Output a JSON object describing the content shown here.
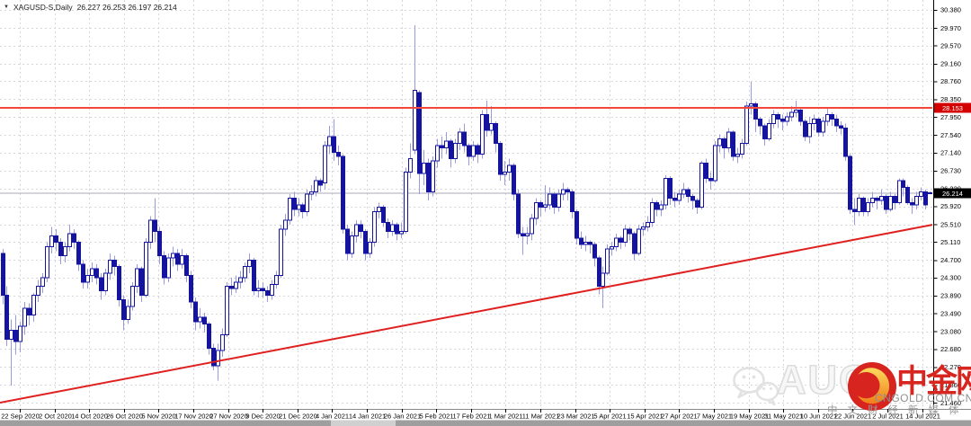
{
  "header": {
    "dropdown_icon": "▼",
    "symbol_label": "XAGUSD-S,Daily",
    "ohlc": "26.227 26.253 26.197 26.214"
  },
  "watermark": {
    "aug_text": "AUG",
    "site_name": "中金网",
    "site_url": "CNGOLD.COM.CN",
    "tagline": "中文财经新媒体"
  },
  "chart_data": {
    "type": "candlestick",
    "title": "XAGUSD-S,Daily",
    "symbol": "XAGUSD-S",
    "timeframe": "Daily",
    "ohlc_display": {
      "open": "26.227",
      "high": "26.253",
      "low": "26.197",
      "close": "26.214"
    },
    "ylim": [
      21.24,
      30.6
    ],
    "grid": true,
    "y_ticks": [
      "30.380",
      "29.970",
      "29.570",
      "29.160",
      "28.760",
      "28.350",
      "27.950",
      "27.540",
      "27.140",
      "26.730",
      "26.320",
      "25.920",
      "25.510",
      "25.110",
      "24.700",
      "24.300",
      "23.890",
      "23.490",
      "23.080",
      "22.680",
      "22.270",
      "21.860",
      "21.460"
    ],
    "x_labels": [
      "22 Sep 2020",
      "2 Oct 2020",
      "14 Oct 2020",
      "26 Oct 2020",
      "5 Nov 2020",
      "17 Nov 2020",
      "27 Nov 2020",
      "9 Dec 2020",
      "21 Dec 2020",
      "4 Jan 2021",
      "14 Jan 2021",
      "26 Jan 2021",
      "5 Feb 2021",
      "17 Feb 2021",
      "1 Mar 2021",
      "11 Mar 2021",
      "23 Mar 2021",
      "5 Apr 2021",
      "15 Apr 2021",
      "27 Apr 2021",
      "7 May 2021",
      "19 May 2021",
      "31 May 2021",
      "10 Jun 2021",
      "22 Jun 2021",
      "2 Jul 2021",
      "14 Jul 2021"
    ],
    "overlays": {
      "resistance_line": {
        "price": 28.153,
        "label": "28.153",
        "color": "#f4473a",
        "badge_color": "#d40000"
      },
      "current_price_line": {
        "price": 26.214,
        "label": "26.214",
        "color": "#a8a8b6",
        "badge_color": "#000000"
      },
      "trendline": {
        "from_price": 21.46,
        "to_price": 25.5,
        "color": "#e02020"
      }
    },
    "colors": {
      "bull": "#ffffff",
      "bear": "#1414a0",
      "border": "#1414a0",
      "wick": "#9a9ade",
      "grid": "#d6d6de",
      "axis_text": "#000000",
      "frame": "#000000",
      "scrollbar_dark": "#9e9e9e",
      "scrollbar_light": "#d0d0d0"
    },
    "candles": [
      [
        24.85,
        24.95,
        23.7,
        23.9
      ],
      [
        23.9,
        24.1,
        22.75,
        22.9
      ],
      [
        22.9,
        23.35,
        21.85,
        23.1
      ],
      [
        23.1,
        23.45,
        22.55,
        22.85
      ],
      [
        22.85,
        23.3,
        22.6,
        23.2
      ],
      [
        23.2,
        23.75,
        23.0,
        23.6
      ],
      [
        23.6,
        23.72,
        23.22,
        23.45
      ],
      [
        23.45,
        23.95,
        23.3,
        23.9
      ],
      [
        23.9,
        24.25,
        23.75,
        24.1
      ],
      [
        24.1,
        24.4,
        23.95,
        24.3
      ],
      [
        24.3,
        25.1,
        24.2,
        25.0
      ],
      [
        25.0,
        25.45,
        24.85,
        25.25
      ],
      [
        25.25,
        25.4,
        24.9,
        25.1
      ],
      [
        25.1,
        25.2,
        24.6,
        24.8
      ],
      [
        24.8,
        25.1,
        24.65,
        25.0
      ],
      [
        25.0,
        25.5,
        24.9,
        25.3
      ],
      [
        25.3,
        25.4,
        24.95,
        25.1
      ],
      [
        25.1,
        25.15,
        24.45,
        24.6
      ],
      [
        24.6,
        24.7,
        24.05,
        24.2
      ],
      [
        24.2,
        24.5,
        24.05,
        24.35
      ],
      [
        24.35,
        24.65,
        24.2,
        24.5
      ],
      [
        24.5,
        24.6,
        24.15,
        24.3
      ],
      [
        24.3,
        24.4,
        23.8,
        24.0
      ],
      [
        24.0,
        24.5,
        23.9,
        24.4
      ],
      [
        24.4,
        24.85,
        24.25,
        24.7
      ],
      [
        24.7,
        24.8,
        24.35,
        24.55
      ],
      [
        24.55,
        24.6,
        23.65,
        23.8
      ],
      [
        23.8,
        23.9,
        23.1,
        23.35
      ],
      [
        23.35,
        23.8,
        23.25,
        23.65
      ],
      [
        23.65,
        24.2,
        23.55,
        24.1
      ],
      [
        24.1,
        24.6,
        23.95,
        24.5
      ],
      [
        24.5,
        24.55,
        23.75,
        23.9
      ],
      [
        23.9,
        25.2,
        23.85,
        25.1
      ],
      [
        25.1,
        25.7,
        24.95,
        25.6
      ],
      [
        25.6,
        26.1,
        25.1,
        25.35
      ],
      [
        25.35,
        25.45,
        24.6,
        24.8
      ],
      [
        24.8,
        24.9,
        24.15,
        24.3
      ],
      [
        24.3,
        24.85,
        24.2,
        24.75
      ],
      [
        24.75,
        25.0,
        24.55,
        24.85
      ],
      [
        24.85,
        24.95,
        24.45,
        24.6
      ],
      [
        24.6,
        24.95,
        24.5,
        24.8
      ],
      [
        24.8,
        24.85,
        24.2,
        24.35
      ],
      [
        24.35,
        24.45,
        23.6,
        23.75
      ],
      [
        23.75,
        23.85,
        23.1,
        23.3
      ],
      [
        23.3,
        23.6,
        23.15,
        23.4
      ],
      [
        23.4,
        23.5,
        23.05,
        23.25
      ],
      [
        23.25,
        23.3,
        22.55,
        22.7
      ],
      [
        22.7,
        22.8,
        22.2,
        22.3
      ],
      [
        22.3,
        22.8,
        21.96,
        22.65
      ],
      [
        22.65,
        23.15,
        22.5,
        23.0
      ],
      [
        23.0,
        24.2,
        22.95,
        24.1
      ],
      [
        24.1,
        24.3,
        23.9,
        24.05
      ],
      [
        24.05,
        24.35,
        23.95,
        24.2
      ],
      [
        24.2,
        24.45,
        24.05,
        24.3
      ],
      [
        24.3,
        24.65,
        24.2,
        24.55
      ],
      [
        24.55,
        24.85,
        24.4,
        24.7
      ],
      [
        24.7,
        24.75,
        23.9,
        24.0
      ],
      [
        24.0,
        24.25,
        23.85,
        24.05
      ],
      [
        24.05,
        24.2,
        23.85,
        24.0
      ],
      [
        24.0,
        24.1,
        23.75,
        23.9
      ],
      [
        23.9,
        24.25,
        23.8,
        24.15
      ],
      [
        24.15,
        24.45,
        24.05,
        24.35
      ],
      [
        24.35,
        25.5,
        24.3,
        25.4
      ],
      [
        25.4,
        25.75,
        25.25,
        25.6
      ],
      [
        25.6,
        26.2,
        25.5,
        26.1
      ],
      [
        26.1,
        26.25,
        25.7,
        25.85
      ],
      [
        25.85,
        26.1,
        25.7,
        25.95
      ],
      [
        25.95,
        26.0,
        25.65,
        25.8
      ],
      [
        25.8,
        26.3,
        25.7,
        26.2
      ],
      [
        26.2,
        26.4,
        26.05,
        26.25
      ],
      [
        26.25,
        26.6,
        26.15,
        26.5
      ],
      [
        26.5,
        26.55,
        26.25,
        26.4
      ],
      [
        26.45,
        27.4,
        26.3,
        27.3
      ],
      [
        27.3,
        27.75,
        27.1,
        27.5
      ],
      [
        27.5,
        27.9,
        26.95,
        27.15
      ],
      [
        27.15,
        27.3,
        26.85,
        27.05
      ],
      [
        27.05,
        27.1,
        25.3,
        25.4
      ],
      [
        25.4,
        25.5,
        24.7,
        24.85
      ],
      [
        24.85,
        25.35,
        24.75,
        25.25
      ],
      [
        25.25,
        25.6,
        25.1,
        25.5
      ],
      [
        25.5,
        25.6,
        25.2,
        25.35
      ],
      [
        25.35,
        25.4,
        24.7,
        24.85
      ],
      [
        24.85,
        25.2,
        24.75,
        25.1
      ],
      [
        25.1,
        25.9,
        25.0,
        25.8
      ],
      [
        25.8,
        26.0,
        25.65,
        25.9
      ],
      [
        25.9,
        25.95,
        25.45,
        25.55
      ],
      [
        25.55,
        25.65,
        25.2,
        25.35
      ],
      [
        25.35,
        25.6,
        25.25,
        25.5
      ],
      [
        25.5,
        25.55,
        25.15,
        25.3
      ],
      [
        25.3,
        25.55,
        25.2,
        25.35
      ],
      [
        25.35,
        26.8,
        25.3,
        26.7
      ],
      [
        26.7,
        27.35,
        26.55,
        27.0
      ],
      [
        27.2,
        30.03,
        27.1,
        28.55
      ],
      [
        28.5,
        28.55,
        26.2,
        26.67
      ],
      [
        26.67,
        27.2,
        26.4,
        26.9
      ],
      [
        26.9,
        27.0,
        26.05,
        26.25
      ],
      [
        26.25,
        27.05,
        26.15,
        26.95
      ],
      [
        26.95,
        27.45,
        26.8,
        27.3
      ],
      [
        27.3,
        27.5,
        27.0,
        27.25
      ],
      [
        27.25,
        27.6,
        27.1,
        27.4
      ],
      [
        27.4,
        27.45,
        26.8,
        27.0
      ],
      [
        27.0,
        27.45,
        26.9,
        27.35
      ],
      [
        27.35,
        27.7,
        27.2,
        27.6
      ],
      [
        27.6,
        27.8,
        27.15,
        27.3
      ],
      [
        27.3,
        27.35,
        26.85,
        27.05
      ],
      [
        27.05,
        27.4,
        26.95,
        27.3
      ],
      [
        27.3,
        27.35,
        26.9,
        27.1
      ],
      [
        27.1,
        28.1,
        27.0,
        28.0
      ],
      [
        28.0,
        28.32,
        27.5,
        27.65
      ],
      [
        27.65,
        28.2,
        27.55,
        27.8
      ],
      [
        27.8,
        27.85,
        27.15,
        27.35
      ],
      [
        27.35,
        27.4,
        26.5,
        26.65
      ],
      [
        26.65,
        26.95,
        26.4,
        26.7
      ],
      [
        26.7,
        27.0,
        26.5,
        26.85
      ],
      [
        26.85,
        26.9,
        26.05,
        26.2
      ],
      [
        26.2,
        26.3,
        25.2,
        25.3
      ],
      [
        25.3,
        25.45,
        24.82,
        25.25
      ],
      [
        25.25,
        25.45,
        25.05,
        25.3
      ],
      [
        25.3,
        25.75,
        25.15,
        25.65
      ],
      [
        25.65,
        26.1,
        25.5,
        26.0
      ],
      [
        26.0,
        26.05,
        25.7,
        25.9
      ],
      [
        25.9,
        26.4,
        25.8,
        25.95
      ],
      [
        25.95,
        26.35,
        25.85,
        26.2
      ],
      [
        26.2,
        26.25,
        25.75,
        25.9
      ],
      [
        25.9,
        26.3,
        25.8,
        26.2
      ],
      [
        26.2,
        26.45,
        26.05,
        26.3
      ],
      [
        26.3,
        26.35,
        26.05,
        26.25
      ],
      [
        26.25,
        26.3,
        25.65,
        25.8
      ],
      [
        25.8,
        25.85,
        25.05,
        25.2
      ],
      [
        25.2,
        25.35,
        24.95,
        25.05
      ],
      [
        25.05,
        25.25,
        24.9,
        25.1
      ],
      [
        25.1,
        25.15,
        24.85,
        25.05
      ],
      [
        25.05,
        25.1,
        24.55,
        24.75
      ],
      [
        24.75,
        24.8,
        23.92,
        24.1
      ],
      [
        24.1,
        24.55,
        23.6,
        24.4
      ],
      [
        24.4,
        25.05,
        24.35,
        24.95
      ],
      [
        24.95,
        25.1,
        24.8,
        25.0
      ],
      [
        25.0,
        25.3,
        24.9,
        25.2
      ],
      [
        25.2,
        25.25,
        24.95,
        25.1
      ],
      [
        25.1,
        25.5,
        25.0,
        25.4
      ],
      [
        25.4,
        25.45,
        25.15,
        25.3
      ],
      [
        25.3,
        25.35,
        24.7,
        24.85
      ],
      [
        24.85,
        25.5,
        24.8,
        25.4
      ],
      [
        25.4,
        25.55,
        25.25,
        25.45
      ],
      [
        25.45,
        25.7,
        25.35,
        25.55
      ],
      [
        25.55,
        26.1,
        25.45,
        26.0
      ],
      [
        26.0,
        26.05,
        25.7,
        25.85
      ],
      [
        25.85,
        26.05,
        25.7,
        25.95
      ],
      [
        25.95,
        26.62,
        25.85,
        26.55
      ],
      [
        26.55,
        26.6,
        25.95,
        26.1
      ],
      [
        26.1,
        26.25,
        25.9,
        26.05
      ],
      [
        26.05,
        26.3,
        25.95,
        26.2
      ],
      [
        26.2,
        26.45,
        26.1,
        26.3
      ],
      [
        26.3,
        26.35,
        26.0,
        26.15
      ],
      [
        26.15,
        26.2,
        25.85,
        26.05
      ],
      [
        26.05,
        26.1,
        25.75,
        25.9
      ],
      [
        25.9,
        26.95,
        25.85,
        26.9
      ],
      [
        26.9,
        27.0,
        26.45,
        26.55
      ],
      [
        26.55,
        26.7,
        26.3,
        26.5
      ],
      [
        26.5,
        27.4,
        26.45,
        27.3
      ],
      [
        27.3,
        27.55,
        27.15,
        27.45
      ],
      [
        27.45,
        27.5,
        27.0,
        27.25
      ],
      [
        27.25,
        27.7,
        27.15,
        27.6
      ],
      [
        27.6,
        27.65,
        26.95,
        27.05
      ],
      [
        27.05,
        27.25,
        26.9,
        27.1
      ],
      [
        27.1,
        27.45,
        27.0,
        27.35
      ],
      [
        27.35,
        28.3,
        27.3,
        28.2
      ],
      [
        28.2,
        28.75,
        28.0,
        28.25
      ],
      [
        28.25,
        28.3,
        27.6,
        27.9
      ],
      [
        27.9,
        27.95,
        27.55,
        27.75
      ],
      [
        27.75,
        27.8,
        27.3,
        27.45
      ],
      [
        27.45,
        27.9,
        27.4,
        27.8
      ],
      [
        27.8,
        28.1,
        27.7,
        28.0
      ],
      [
        28.0,
        28.05,
        27.7,
        27.9
      ],
      [
        27.9,
        28.0,
        27.65,
        27.85
      ],
      [
        27.85,
        28.05,
        27.75,
        27.95
      ],
      [
        27.95,
        28.2,
        27.85,
        28.05
      ],
      [
        28.05,
        28.32,
        27.95,
        28.1
      ],
      [
        28.1,
        28.15,
        27.75,
        27.85
      ],
      [
        27.85,
        27.9,
        27.4,
        27.5
      ],
      [
        27.5,
        27.95,
        27.35,
        27.8
      ],
      [
        27.8,
        28.0,
        27.65,
        27.9
      ],
      [
        27.9,
        27.95,
        27.5,
        27.6
      ],
      [
        27.6,
        27.95,
        27.5,
        27.85
      ],
      [
        27.85,
        28.15,
        27.75,
        28.0
      ],
      [
        28.0,
        28.05,
        27.75,
        27.9
      ],
      [
        27.9,
        28.0,
        27.6,
        27.75
      ],
      [
        27.75,
        27.85,
        27.55,
        27.7
      ],
      [
        27.7,
        27.8,
        26.95,
        27.05
      ],
      [
        27.05,
        27.1,
        25.75,
        25.85
      ],
      [
        25.85,
        26.1,
        25.5,
        25.8
      ],
      [
        25.8,
        26.2,
        25.7,
        26.1
      ],
      [
        26.1,
        26.15,
        25.7,
        25.8
      ],
      [
        25.8,
        26.1,
        25.7,
        26.0
      ],
      [
        26.0,
        26.25,
        25.9,
        26.1
      ],
      [
        26.1,
        26.15,
        25.85,
        26.05
      ],
      [
        26.05,
        26.3,
        25.95,
        26.15
      ],
      [
        26.15,
        26.2,
        25.75,
        25.85
      ],
      [
        25.85,
        26.25,
        25.8,
        26.15
      ],
      [
        26.15,
        26.2,
        25.85,
        26.0
      ],
      [
        26.0,
        26.55,
        25.95,
        26.5
      ],
      [
        26.5,
        26.55,
        26.15,
        26.35
      ],
      [
        26.35,
        26.4,
        25.95,
        26.0
      ],
      [
        26.0,
        26.1,
        25.75,
        25.95
      ],
      [
        25.95,
        26.25,
        25.85,
        26.15
      ],
      [
        26.15,
        26.35,
        26.05,
        26.25
      ],
      [
        26.25,
        26.3,
        25.85,
        25.95
      ],
      [
        26.227,
        26.253,
        26.197,
        26.214
      ]
    ]
  }
}
